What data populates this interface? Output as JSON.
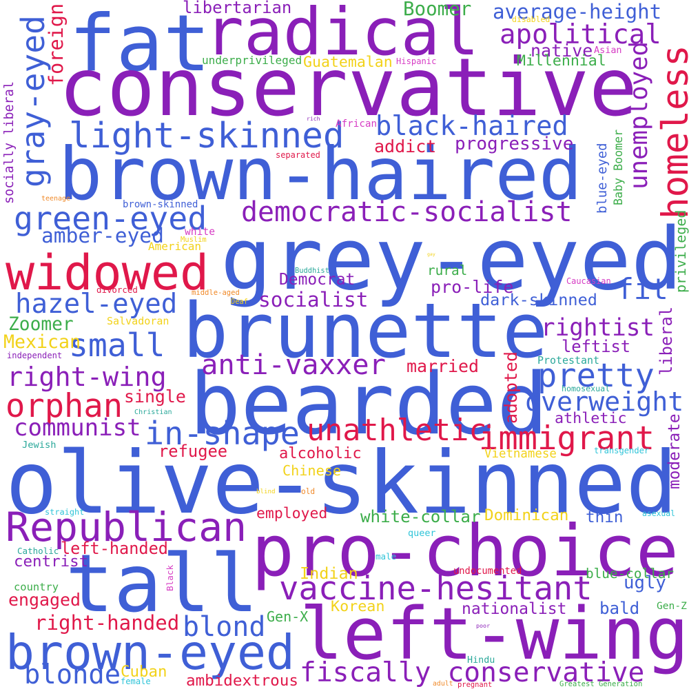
{
  "palette": {
    "blue": "#3f5fd6",
    "purple": "#8a1fb8",
    "red": "#e0184a",
    "green": "#3cad4a",
    "yellow": "#f2d21a",
    "cyan": "#2fc4d8",
    "magenta": "#d63cc4",
    "orange": "#f08a2a",
    "teal": "#2aa89a"
  },
  "words": [
    {
      "id": "fat",
      "text": "fat",
      "color": "blue",
      "vertical": false
    },
    {
      "id": "radical",
      "text": "radical",
      "color": "purple",
      "vertical": false
    },
    {
      "id": "conservative",
      "text": "conservative",
      "color": "purple",
      "vertical": false
    },
    {
      "id": "brown-haired",
      "text": "brown-haired",
      "color": "blue",
      "vertical": false
    },
    {
      "id": "grey-eyed",
      "text": "grey-eyed",
      "color": "blue",
      "vertical": false
    },
    {
      "id": "brunette",
      "text": "brunette",
      "color": "blue",
      "vertical": false
    },
    {
      "id": "bearded",
      "text": "bearded",
      "color": "blue",
      "vertical": false
    },
    {
      "id": "olive-skinned",
      "text": "olive-skinned",
      "color": "blue",
      "vertical": false
    },
    {
      "id": "pro-choice",
      "text": "pro-choice",
      "color": "purple",
      "vertical": false
    },
    {
      "id": "tall",
      "text": "tall",
      "color": "blue",
      "vertical": false
    },
    {
      "id": "left-wing",
      "text": "left-wing",
      "color": "purple",
      "vertical": false
    },
    {
      "id": "brown-eyed",
      "text": "brown-eyed",
      "color": "blue",
      "vertical": false
    },
    {
      "id": "widowed",
      "text": "widowed",
      "color": "red",
      "vertical": false
    },
    {
      "id": "Republican",
      "text": "Republican",
      "color": "purple",
      "vertical": false
    },
    {
      "id": "light-skinned",
      "text": "light-skinned",
      "color": "blue",
      "vertical": false
    },
    {
      "id": "black-haired",
      "text": "black-haired",
      "color": "blue",
      "vertical": false
    },
    {
      "id": "apolitical",
      "text": "apolitical",
      "color": "purple",
      "vertical": false
    },
    {
      "id": "democratic-socialist",
      "text": "democratic-socialist",
      "color": "purple",
      "vertical": false
    },
    {
      "id": "green-eyed",
      "text": "green-eyed",
      "color": "blue",
      "vertical": false
    },
    {
      "id": "hazel-eyed",
      "text": "hazel-eyed",
      "color": "blue",
      "vertical": false
    },
    {
      "id": "small",
      "text": "small",
      "color": "blue",
      "vertical": false
    },
    {
      "id": "fit",
      "text": "fit",
      "color": "blue",
      "vertical": false
    },
    {
      "id": "pretty",
      "text": "pretty",
      "color": "blue",
      "vertical": false
    },
    {
      "id": "immigrant",
      "text": "immigrant",
      "color": "red",
      "vertical": false
    },
    {
      "id": "anti-vaxxer",
      "text": "anti-vaxxer",
      "color": "purple",
      "vertical": false
    },
    {
      "id": "right-wing",
      "text": "right-wing",
      "color": "purple",
      "vertical": false
    },
    {
      "id": "orphan",
      "text": "orphan",
      "color": "red",
      "vertical": false
    },
    {
      "id": "in-shape",
      "text": "in-shape",
      "color": "blue",
      "vertical": false
    },
    {
      "id": "unathletic",
      "text": "unathletic",
      "color": "red",
      "vertical": false
    },
    {
      "id": "communist",
      "text": "communist",
      "color": "purple",
      "vertical": false
    },
    {
      "id": "overweight",
      "text": "overweight",
      "color": "blue",
      "vertical": false
    },
    {
      "id": "rightist",
      "text": "rightist",
      "color": "purple",
      "vertical": false
    },
    {
      "id": "vaccine-hesitant",
      "text": "vaccine-hesitant",
      "color": "purple",
      "vertical": false
    },
    {
      "id": "fiscally-conservative",
      "text": "fiscally conservative",
      "color": "purple",
      "vertical": false
    },
    {
      "id": "blonde",
      "text": "blonde",
      "color": "blue",
      "vertical": false
    },
    {
      "id": "blond",
      "text": "blond",
      "color": "blue",
      "vertical": false
    },
    {
      "id": "libertarian",
      "text": "libertarian",
      "color": "purple",
      "vertical": false
    },
    {
      "id": "Boomer",
      "text": "Boomer",
      "color": "green",
      "vertical": false
    },
    {
      "id": "average-height",
      "text": "average-height",
      "color": "blue",
      "vertical": false
    },
    {
      "id": "native",
      "text": "native",
      "color": "purple",
      "vertical": false
    },
    {
      "id": "underprivileged",
      "text": "underprivileged",
      "color": "green",
      "vertical": false
    },
    {
      "id": "Guatemalan",
      "text": "Guatemalan",
      "color": "yellow",
      "vertical": false
    },
    {
      "id": "Millennial",
      "text": "Millennial",
      "color": "green",
      "vertical": false
    },
    {
      "id": "disabled",
      "text": "disabled",
      "color": "yellow",
      "vertical": false
    },
    {
      "id": "Asian",
      "text": "Asian",
      "color": "magenta",
      "vertical": false
    },
    {
      "id": "Hispanic",
      "text": "Hispanic",
      "color": "magenta",
      "vertical": false
    },
    {
      "id": "rich",
      "text": "rich",
      "color": "purple",
      "vertical": false
    },
    {
      "id": "African",
      "text": "African",
      "color": "magenta",
      "vertical": false
    },
    {
      "id": "addict",
      "text": "addict",
      "color": "red",
      "vertical": false
    },
    {
      "id": "progressive",
      "text": "progressive",
      "color": "purple",
      "vertical": false
    },
    {
      "id": "separated",
      "text": "separated",
      "color": "red",
      "vertical": false
    },
    {
      "id": "teenage",
      "text": "teenage",
      "color": "orange",
      "vertical": false
    },
    {
      "id": "brown-skinned",
      "text": "brown-skinned",
      "color": "blue",
      "vertical": false
    },
    {
      "id": "white",
      "text": "white",
      "color": "magenta",
      "vertical": false
    },
    {
      "id": "amber-eyed",
      "text": "amber-eyed",
      "color": "blue",
      "vertical": false
    },
    {
      "id": "Muslim",
      "text": "Muslim",
      "color": "yellow",
      "vertical": false
    },
    {
      "id": "American",
      "text": "American",
      "color": "yellow",
      "vertical": false
    },
    {
      "id": "gay",
      "text": "gay",
      "color": "yellow",
      "vertical": false
    },
    {
      "id": "rural",
      "text": "rural",
      "color": "green",
      "vertical": false
    },
    {
      "id": "Buddhist",
      "text": "Buddhist",
      "color": "teal",
      "vertical": false
    },
    {
      "id": "Democrat",
      "text": "Democrat",
      "color": "purple",
      "vertical": false
    },
    {
      "id": "pro-life",
      "text": "pro-life",
      "color": "purple",
      "vertical": false
    },
    {
      "id": "Caucasian",
      "text": "Caucasian",
      "color": "magenta",
      "vertical": false
    },
    {
      "id": "divorced",
      "text": "divorced",
      "color": "red",
      "vertical": false
    },
    {
      "id": "middle-aged",
      "text": "middle-aged",
      "color": "orange",
      "vertical": false
    },
    {
      "id": "socialist",
      "text": "socialist",
      "color": "purple",
      "vertical": false
    },
    {
      "id": "dark-skinned",
      "text": "dark-skinned",
      "color": "blue",
      "vertical": false
    },
    {
      "id": "Deaf",
      "text": "Deaf",
      "color": "yellow",
      "vertical": false
    },
    {
      "id": "Zoomer",
      "text": "Zoomer",
      "color": "green",
      "vertical": false
    },
    {
      "id": "Salvadoran",
      "text": "Salvadoran",
      "color": "yellow",
      "vertical": false
    },
    {
      "id": "Mexican",
      "text": "Mexican",
      "color": "yellow",
      "vertical": false
    },
    {
      "id": "leftist",
      "text": "leftist",
      "color": "purple",
      "vertical": false
    },
    {
      "id": "independent",
      "text": "independent",
      "color": "purple",
      "vertical": false
    },
    {
      "id": "Protestant",
      "text": "Protestant",
      "color": "teal",
      "vertical": false
    },
    {
      "id": "married",
      "text": "married",
      "color": "red",
      "vertical": false
    },
    {
      "id": "homosexual",
      "text": "homosexual",
      "color": "teal",
      "vertical": false
    },
    {
      "id": "single",
      "text": "single",
      "color": "red",
      "vertical": false
    },
    {
      "id": "Christian",
      "text": "Christian",
      "color": "teal",
      "vertical": false
    },
    {
      "id": "athletic",
      "text": "athletic",
      "color": "purple",
      "vertical": false
    },
    {
      "id": "Jewish",
      "text": "Jewish",
      "color": "teal",
      "vertical": false
    },
    {
      "id": "refugee",
      "text": "refugee",
      "color": "red",
      "vertical": false
    },
    {
      "id": "alcoholic",
      "text": "alcoholic",
      "color": "red",
      "vertical": false
    },
    {
      "id": "Vietnamese",
      "text": "Vietnamese",
      "color": "yellow",
      "vertical": false
    },
    {
      "id": "transgender",
      "text": "transgender",
      "color": "cyan",
      "vertical": false
    },
    {
      "id": "Chinese",
      "text": "Chinese",
      "color": "yellow",
      "vertical": false
    },
    {
      "id": "blind",
      "text": "blind",
      "color": "yellow",
      "vertical": false
    },
    {
      "id": "old",
      "text": "old",
      "color": "orange",
      "vertical": false
    },
    {
      "id": "straight",
      "text": "straight",
      "color": "cyan",
      "vertical": false
    },
    {
      "id": "employed",
      "text": "employed",
      "color": "red",
      "vertical": false
    },
    {
      "id": "white-collar",
      "text": "white-collar",
      "color": "green",
      "vertical": false
    },
    {
      "id": "Dominican",
      "text": "Dominican",
      "color": "yellow",
      "vertical": false
    },
    {
      "id": "thin",
      "text": "thin",
      "color": "blue",
      "vertical": false
    },
    {
      "id": "asexual",
      "text": "asexual",
      "color": "cyan",
      "vertical": false
    },
    {
      "id": "Catholic",
      "text": "Catholic",
      "color": "teal",
      "vertical": false
    },
    {
      "id": "left-handed",
      "text": "left-handed",
      "color": "red",
      "vertical": false
    },
    {
      "id": "queer",
      "text": "queer",
      "color": "cyan",
      "vertical": false
    },
    {
      "id": "male",
      "text": "male",
      "color": "cyan",
      "vertical": false
    },
    {
      "id": "centrist",
      "text": "centrist",
      "color": "purple",
      "vertical": false
    },
    {
      "id": "Indian",
      "text": "Indian",
      "color": "yellow",
      "vertical": false
    },
    {
      "id": "undocumented",
      "text": "undocumented",
      "color": "red",
      "vertical": false
    },
    {
      "id": "blue-collar",
      "text": "blue-collar",
      "color": "green",
      "vertical": false
    },
    {
      "id": "country",
      "text": "country",
      "color": "green",
      "vertical": false
    },
    {
      "id": "ugly",
      "text": "ugly",
      "color": "blue",
      "vertical": false
    },
    {
      "id": "engaged",
      "text": "engaged",
      "color": "red",
      "vertical": false
    },
    {
      "id": "nationalist",
      "text": "nationalist",
      "color": "purple",
      "vertical": false
    },
    {
      "id": "Korean",
      "text": "Korean",
      "color": "yellow",
      "vertical": false
    },
    {
      "id": "bald",
      "text": "bald",
      "color": "blue",
      "vertical": false
    },
    {
      "id": "Gen-Z",
      "text": "Gen-Z",
      "color": "green",
      "vertical": false
    },
    {
      "id": "right-handed",
      "text": "right-handed",
      "color": "red",
      "vertical": false
    },
    {
      "id": "Gen-X",
      "text": "Gen-X",
      "color": "green",
      "vertical": false
    },
    {
      "id": "poor",
      "text": "poor",
      "color": "purple",
      "vertical": false
    },
    {
      "id": "Cuban",
      "text": "Cuban",
      "color": "yellow",
      "vertical": false
    },
    {
      "id": "Hindu",
      "text": "Hindu",
      "color": "teal",
      "vertical": false
    },
    {
      "id": "female",
      "text": "female",
      "color": "cyan",
      "vertical": false
    },
    {
      "id": "ambidextrous",
      "text": "ambidextrous",
      "color": "red",
      "vertical": false
    },
    {
      "id": "adult",
      "text": "adult",
      "color": "orange",
      "vertical": false
    },
    {
      "id": "pregnant",
      "text": "pregnant",
      "color": "red",
      "vertical": false
    },
    {
      "id": "Greatest-Generation",
      "text": "Greatest Generation",
      "color": "green",
      "vertical": false
    },
    {
      "id": "gray-eyed",
      "text": "gray-eyed",
      "color": "blue",
      "vertical": true
    },
    {
      "id": "socially-liberal",
      "text": "socially liberal",
      "color": "purple",
      "vertical": true
    },
    {
      "id": "foreign",
      "text": "foreign",
      "color": "red",
      "vertical": true
    },
    {
      "id": "homeless",
      "text": "homeless",
      "color": "red",
      "vertical": true
    },
    {
      "id": "unemployed",
      "text": "unemployed",
      "color": "purple",
      "vertical": true
    },
    {
      "id": "blue-eyed",
      "text": "blue-eyed",
      "color": "blue",
      "vertical": true
    },
    {
      "id": "Baby-Boomer",
      "text": "Baby Boomer",
      "color": "green",
      "vertical": true
    },
    {
      "id": "privileged",
      "text": "privileged",
      "color": "green",
      "vertical": true
    },
    {
      "id": "liberal",
      "text": "liberal",
      "color": "purple",
      "vertical": true
    },
    {
      "id": "adopted",
      "text": "adopted",
      "color": "red",
      "vertical": true
    },
    {
      "id": "moderate",
      "text": "moderate",
      "color": "purple",
      "vertical": true
    },
    {
      "id": "Black",
      "text": "Black",
      "color": "magenta",
      "vertical": true
    }
  ]
}
